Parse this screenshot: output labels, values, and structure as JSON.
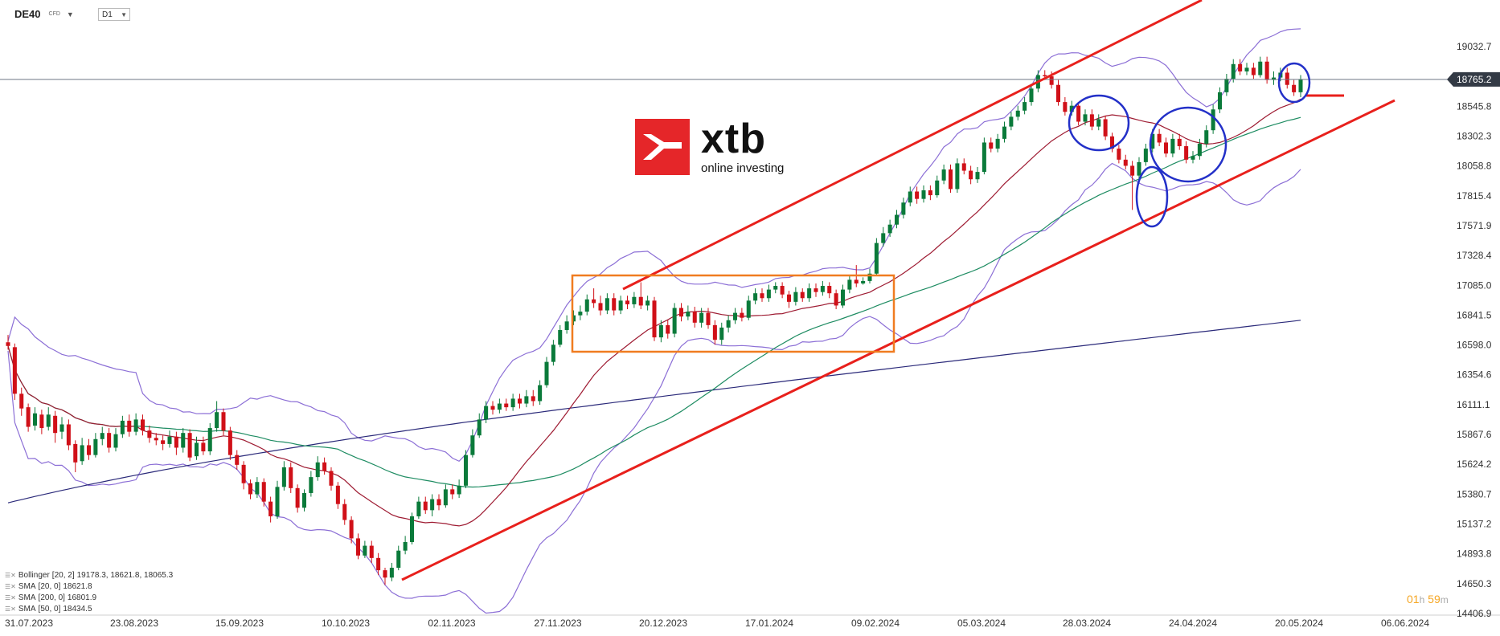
{
  "header": {
    "symbol": "DE40",
    "symbol_type": "CFD",
    "timeframe": "D1",
    "current_price": "18765.2"
  },
  "logo": {
    "word": "xtb",
    "sub": "online investing"
  },
  "legend": [
    {
      "label": "Bollinger",
      "params": "[20, 2]",
      "values": "19178.3,  18621.8,  18065.3"
    },
    {
      "label": "SMA",
      "params": "[20, 0]",
      "values": "18621.8"
    },
    {
      "label": "SMA",
      "params": "[200, 0]",
      "values": "16801.9"
    },
    {
      "label": "SMA",
      "params": "[50, 0]",
      "values": "18434.5"
    }
  ],
  "countdown": {
    "hours": "01",
    "h_unit": "h",
    "minutes": "59",
    "m_unit": "m"
  },
  "colors": {
    "bull": "#0a7a3a",
    "bear": "#d01018",
    "sma20": "#9e1b32",
    "sma50": "#1e8c62",
    "sma200": "#2b2a7a",
    "bollinger": "#8c6fd6",
    "trend": "#e8201c",
    "box": "#f07c20",
    "ellipse": "#2330c8",
    "price_tag": "#333a45"
  },
  "chart_data": {
    "type": "candlestick",
    "y_ticks": [
      "19032.7",
      "18545.8",
      "18302.3",
      "18058.8",
      "17815.4",
      "17571.9",
      "17328.4",
      "17085.0",
      "16841.5",
      "16598.0",
      "16354.6",
      "16111.1",
      "15867.6",
      "15624.2",
      "15380.7",
      "15137.2",
      "14893.8",
      "14650.3",
      "14406.9"
    ],
    "x_ticks": [
      "31.07.2023",
      "23.08.2023",
      "15.09.2023",
      "10.10.2023",
      "02.11.2023",
      "27.11.2023",
      "20.12.2023",
      "17.01.2024",
      "09.02.2024",
      "05.03.2024",
      "28.03.2024",
      "24.04.2024",
      "20.05.2024",
      "06.06.2024"
    ],
    "ylim": [
      14406.9,
      19276.2
    ],
    "current_price": 18765.2,
    "candles": [
      [
        16620,
        16590,
        16680,
        16560
      ],
      [
        16580,
        16200,
        16610,
        16150
      ],
      [
        16200,
        16080,
        16250,
        16020
      ],
      [
        16090,
        15930,
        16120,
        15890
      ],
      [
        15940,
        16040,
        16090,
        15900
      ],
      [
        16030,
        15920,
        16070,
        15870
      ],
      [
        15930,
        16030,
        16090,
        15900
      ],
      [
        16020,
        15880,
        16060,
        15800
      ],
      [
        15890,
        15950,
        16010,
        15830
      ],
      [
        15950,
        15780,
        15990,
        15740
      ],
      [
        15790,
        15640,
        15820,
        15560
      ],
      [
        15650,
        15780,
        15840,
        15620
      ],
      [
        15780,
        15700,
        15830,
        15660
      ],
      [
        15700,
        15830,
        15880,
        15680
      ],
      [
        15830,
        15880,
        15930,
        15780
      ],
      [
        15880,
        15760,
        15920,
        15720
      ],
      [
        15760,
        15870,
        15920,
        15730
      ],
      [
        15870,
        15980,
        16020,
        15840
      ],
      [
        15980,
        15890,
        16030,
        15850
      ],
      [
        15890,
        15990,
        16040,
        15860
      ],
      [
        15990,
        15900,
        16030,
        15860
      ],
      [
        15900,
        15840,
        15940,
        15800
      ],
      [
        15840,
        15820,
        15880,
        15780
      ],
      [
        15820,
        15790,
        15860,
        15740
      ],
      [
        15790,
        15850,
        15900,
        15760
      ],
      [
        15850,
        15760,
        15890,
        15700
      ],
      [
        15760,
        15880,
        15920,
        15720
      ],
      [
        15880,
        15680,
        15910,
        15650
      ],
      [
        15690,
        15800,
        15850,
        15660
      ],
      [
        15800,
        15730,
        15850,
        15700
      ],
      [
        15730,
        15920,
        15960,
        15700
      ],
      [
        15920,
        16050,
        16140,
        15890
      ],
      [
        16050,
        15900,
        16080,
        15860
      ],
      [
        15900,
        15700,
        15930,
        15660
      ],
      [
        15700,
        15620,
        15740,
        15580
      ],
      [
        15620,
        15470,
        15650,
        15420
      ],
      [
        15470,
        15380,
        15500,
        15340
      ],
      [
        15380,
        15480,
        15520,
        15350
      ],
      [
        15480,
        15320,
        15510,
        15280
      ],
      [
        15320,
        15200,
        15360,
        15150
      ],
      [
        15200,
        15440,
        15490,
        15180
      ],
      [
        15440,
        15600,
        15650,
        15410
      ],
      [
        15600,
        15430,
        15640,
        15390
      ],
      [
        15430,
        15270,
        15460,
        15230
      ],
      [
        15270,
        15390,
        15420,
        15240
      ],
      [
        15390,
        15520,
        15570,
        15360
      ],
      [
        15520,
        15640,
        15690,
        15490
      ],
      [
        15640,
        15570,
        15680,
        15540
      ],
      [
        15570,
        15450,
        15600,
        15410
      ],
      [
        15450,
        15300,
        15480,
        15260
      ],
      [
        15300,
        15170,
        15340,
        15130
      ],
      [
        15170,
        15020,
        15200,
        14980
      ],
      [
        15020,
        14880,
        15060,
        14850
      ],
      [
        14880,
        14960,
        15000,
        14860
      ],
      [
        14960,
        14860,
        15000,
        14820
      ],
      [
        14860,
        14760,
        14900,
        14720
      ],
      [
        14760,
        14700,
        14780,
        14640
      ],
      [
        14700,
        14780,
        14820,
        14670
      ],
      [
        14780,
        14920,
        14960,
        14760
      ],
      [
        14920,
        14990,
        15040,
        14890
      ],
      [
        14990,
        15200,
        15230,
        14970
      ],
      [
        15200,
        15320,
        15360,
        15180
      ],
      [
        15320,
        15250,
        15360,
        15220
      ],
      [
        15250,
        15340,
        15380,
        15200
      ],
      [
        15340,
        15290,
        15380,
        15250
      ],
      [
        15290,
        15420,
        15460,
        15270
      ],
      [
        15420,
        15380,
        15460,
        15340
      ],
      [
        15380,
        15450,
        15500,
        15350
      ],
      [
        15450,
        15700,
        15740,
        15430
      ],
      [
        15700,
        15860,
        15910,
        15680
      ],
      [
        15860,
        15990,
        16040,
        15840
      ],
      [
        15990,
        16100,
        16140,
        15960
      ],
      [
        16100,
        16070,
        16140,
        16030
      ],
      [
        16070,
        16120,
        16160,
        16040
      ],
      [
        16120,
        16090,
        16160,
        16060
      ],
      [
        16090,
        16160,
        16200,
        16060
      ],
      [
        16160,
        16120,
        16200,
        16080
      ],
      [
        16120,
        16180,
        16230,
        16090
      ],
      [
        16180,
        16140,
        16230,
        16100
      ],
      [
        16140,
        16270,
        16310,
        16110
      ],
      [
        16270,
        16460,
        16500,
        16250
      ],
      [
        16460,
        16600,
        16640,
        16430
      ],
      [
        16600,
        16720,
        16760,
        16580
      ],
      [
        16720,
        16790,
        16840,
        16690
      ],
      [
        16790,
        16840,
        16880,
        16760
      ],
      [
        16840,
        16870,
        16920,
        16800
      ],
      [
        16870,
        16970,
        17010,
        16840
      ],
      [
        16970,
        16940,
        17060,
        16900
      ],
      [
        16940,
        16880,
        17000,
        16840
      ],
      [
        16880,
        16980,
        17020,
        16850
      ],
      [
        16980,
        16880,
        17020,
        16840
      ],
      [
        16880,
        16960,
        17000,
        16850
      ],
      [
        16960,
        16930,
        17000,
        16890
      ],
      [
        16930,
        16990,
        17030,
        16900
      ],
      [
        16990,
        16920,
        17110,
        16890
      ],
      [
        16920,
        16960,
        17000,
        16880
      ],
      [
        16960,
        16660,
        16990,
        16630
      ],
      [
        16660,
        16760,
        16800,
        16620
      ],
      [
        16760,
        16690,
        16800,
        16650
      ],
      [
        16690,
        16900,
        16940,
        16660
      ],
      [
        16900,
        16830,
        16940,
        16790
      ],
      [
        16830,
        16870,
        16920,
        16800
      ],
      [
        16870,
        16780,
        16910,
        16740
      ],
      [
        16780,
        16860,
        16900,
        16740
      ],
      [
        16860,
        16760,
        16900,
        16730
      ],
      [
        16760,
        16640,
        16800,
        16600
      ],
      [
        16640,
        16740,
        16780,
        16600
      ],
      [
        16740,
        16800,
        16840,
        16700
      ],
      [
        16800,
        16860,
        16900,
        16770
      ],
      [
        16860,
        16820,
        16900,
        16790
      ],
      [
        16820,
        16960,
        17000,
        16800
      ],
      [
        16960,
        17020,
        17060,
        16930
      ],
      [
        17020,
        16980,
        17060,
        16950
      ],
      [
        16980,
        17050,
        17090,
        16950
      ],
      [
        17050,
        17080,
        17110,
        17020
      ],
      [
        17080,
        17010,
        17110,
        16980
      ],
      [
        17010,
        16950,
        17040,
        16900
      ],
      [
        16950,
        17030,
        17070,
        16920
      ],
      [
        17030,
        16980,
        17060,
        16950
      ],
      [
        16980,
        17060,
        17100,
        16950
      ],
      [
        17060,
        17030,
        17100,
        16990
      ],
      [
        17030,
        17080,
        17120,
        17000
      ],
      [
        17080,
        17020,
        17110,
        16980
      ],
      [
        17020,
        16920,
        17050,
        16890
      ],
      [
        16920,
        17050,
        17090,
        16900
      ],
      [
        17050,
        17130,
        17170,
        17020
      ],
      [
        17130,
        17100,
        17250,
        17070
      ],
      [
        17100,
        17120,
        17150,
        17090
      ],
      [
        17120,
        17180,
        17220,
        17100
      ],
      [
        17180,
        17430,
        17470,
        17160
      ],
      [
        17430,
        17510,
        17560,
        17400
      ],
      [
        17510,
        17580,
        17620,
        17480
      ],
      [
        17580,
        17660,
        17700,
        17550
      ],
      [
        17660,
        17760,
        17800,
        17630
      ],
      [
        17760,
        17850,
        17890,
        17730
      ],
      [
        17850,
        17790,
        17890,
        17750
      ],
      [
        17790,
        17860,
        17900,
        17760
      ],
      [
        17860,
        17820,
        17900,
        17780
      ],
      [
        17820,
        17940,
        17980,
        17800
      ],
      [
        17940,
        18030,
        18070,
        17910
      ],
      [
        18030,
        17870,
        18070,
        17840
      ],
      [
        17870,
        18080,
        18120,
        17840
      ],
      [
        18080,
        18020,
        18120,
        17990
      ],
      [
        18020,
        17950,
        18060,
        17910
      ],
      [
        17950,
        18010,
        18050,
        17920
      ],
      [
        18010,
        18250,
        18290,
        17990
      ],
      [
        18250,
        18200,
        18290,
        18170
      ],
      [
        18200,
        18280,
        18320,
        18170
      ],
      [
        18280,
        18380,
        18420,
        18250
      ],
      [
        18380,
        18460,
        18500,
        18350
      ],
      [
        18460,
        18510,
        18550,
        18430
      ],
      [
        18510,
        18580,
        18620,
        18480
      ],
      [
        18580,
        18690,
        18730,
        18550
      ],
      [
        18690,
        18800,
        18840,
        18660
      ],
      [
        18800,
        18790,
        18840,
        18760
      ],
      [
        18790,
        18720,
        18830,
        18690
      ],
      [
        18720,
        18580,
        18760,
        18550
      ],
      [
        18580,
        18500,
        18620,
        18470
      ],
      [
        18500,
        18550,
        18590,
        18470
      ],
      [
        18550,
        18420,
        18580,
        18390
      ],
      [
        18420,
        18480,
        18520,
        18390
      ],
      [
        18480,
        18380,
        18520,
        18350
      ],
      [
        18380,
        18440,
        18480,
        18350
      ],
      [
        18440,
        18300,
        18470,
        18270
      ],
      [
        18300,
        18200,
        18330,
        18170
      ],
      [
        18200,
        18110,
        18230,
        18080
      ],
      [
        18110,
        18060,
        18150,
        18030
      ],
      [
        18060,
        17980,
        18100,
        17700
      ],
      [
        17980,
        18090,
        18130,
        17950
      ],
      [
        18090,
        18200,
        18240,
        18060
      ],
      [
        18200,
        18320,
        18360,
        18170
      ],
      [
        18320,
        18250,
        18360,
        18220
      ],
      [
        18250,
        18160,
        18290,
        18130
      ],
      [
        18160,
        18280,
        18320,
        18130
      ],
      [
        18280,
        18220,
        18320,
        18190
      ],
      [
        18220,
        18110,
        18260,
        18080
      ],
      [
        18110,
        18140,
        18180,
        18080
      ],
      [
        18140,
        18240,
        18280,
        18110
      ],
      [
        18240,
        18350,
        18390,
        18210
      ],
      [
        18350,
        18520,
        18560,
        18320
      ],
      [
        18520,
        18660,
        18700,
        18490
      ],
      [
        18660,
        18770,
        18810,
        18630
      ],
      [
        18770,
        18890,
        18930,
        18740
      ],
      [
        18890,
        18830,
        18930,
        18800
      ],
      [
        18830,
        18860,
        18900,
        18800
      ],
      [
        18860,
        18800,
        18900,
        18770
      ],
      [
        18800,
        18910,
        18950,
        18780
      ],
      [
        18910,
        18760,
        18950,
        18730
      ],
      [
        18760,
        18780,
        18830,
        18720
      ],
      [
        18780,
        18820,
        18860,
        18750
      ],
      [
        18820,
        18720,
        18860,
        18690
      ],
      [
        18720,
        18660,
        18760,
        18630
      ],
      [
        18660,
        18765,
        18800,
        18620
      ]
    ]
  }
}
